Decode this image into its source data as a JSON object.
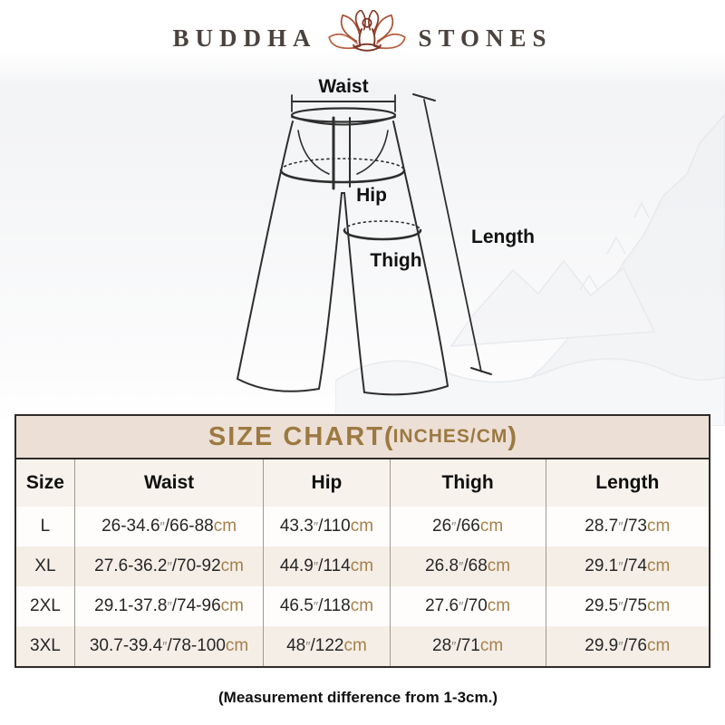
{
  "brand": {
    "left": "BUDDHA",
    "right": "STONES",
    "lotus_icon": "lotus-meditation-icon"
  },
  "diagram": {
    "waist_label": "Waist",
    "hip_label": "Hip",
    "thigh_label": "Thigh",
    "length_label": "Length"
  },
  "size_chart": {
    "title_main": "SIZE CHART",
    "paren_open": "(",
    "units": "INCHES/CM",
    "paren_close": ")",
    "columns": [
      "Size",
      "Waist",
      "Hip",
      "Thigh",
      "Length"
    ],
    "inch_mark": "″",
    "cm_label": "cm",
    "rows": [
      {
        "size": "L",
        "waist": {
          "in": "26-34.6",
          "cm": "66-88"
        },
        "hip": {
          "in": "43.3",
          "cm": "110"
        },
        "thigh": {
          "in": "26",
          "cm": "66"
        },
        "length": {
          "in": "28.7",
          "cm": "73"
        }
      },
      {
        "size": "XL",
        "waist": {
          "in": "27.6-36.2",
          "cm": "70-92"
        },
        "hip": {
          "in": "44.9",
          "cm": "114"
        },
        "thigh": {
          "in": "26.8",
          "cm": "68"
        },
        "length": {
          "in": "29.1",
          "cm": "74"
        }
      },
      {
        "size": "2XL",
        "waist": {
          "in": "29.1-37.8",
          "cm": "74-96"
        },
        "hip": {
          "in": "46.5",
          "cm": "118"
        },
        "thigh": {
          "in": "27.6",
          "cm": "70"
        },
        "length": {
          "in": "29.5",
          "cm": "75"
        }
      },
      {
        "size": "3XL",
        "waist": {
          "in": "30.7-39.4",
          "cm": "78-100"
        },
        "hip": {
          "in": "48",
          "cm": "122"
        },
        "thigh": {
          "in": "28",
          "cm": "71"
        },
        "length": {
          "in": "29.9",
          "cm": "76"
        }
      }
    ]
  },
  "footnote": "(Measurement difference from 1-3cm.)",
  "colors": {
    "title_bar_bg": "#ecdfd6",
    "title_text": "#9c7940",
    "cm_accent": "#a5804a",
    "alt_row_bg": "#f5eee7",
    "table_border": "#2f2b29",
    "logo_text": "#4b423e",
    "lotus_dark": "#7c3526",
    "lotus_mid": "#a84f33",
    "lotus_light": "#b95f3c"
  },
  "chart_data": {
    "type": "table",
    "title": "SIZE CHART (INCHES/CM)",
    "columns": [
      "Size",
      "Waist",
      "Hip",
      "Thigh",
      "Length"
    ],
    "rows": [
      [
        "L",
        "26-34.6″/66-88cm",
        "43.3″/110cm",
        "26″/66cm",
        "28.7″/73cm"
      ],
      [
        "XL",
        "27.6-36.2″/70-92cm",
        "44.9″/114cm",
        "26.8″/68cm",
        "29.1″/74cm"
      ],
      [
        "2XL",
        "29.1-37.8″/74-96cm",
        "46.5″/118cm",
        "27.6″/70cm",
        "29.5″/75cm"
      ],
      [
        "3XL",
        "30.7-39.4″/78-100cm",
        "48″/122cm",
        "28″/71cm",
        "29.9″/76cm"
      ]
    ],
    "footnote": "(Measurement difference from 1-3cm.)"
  }
}
